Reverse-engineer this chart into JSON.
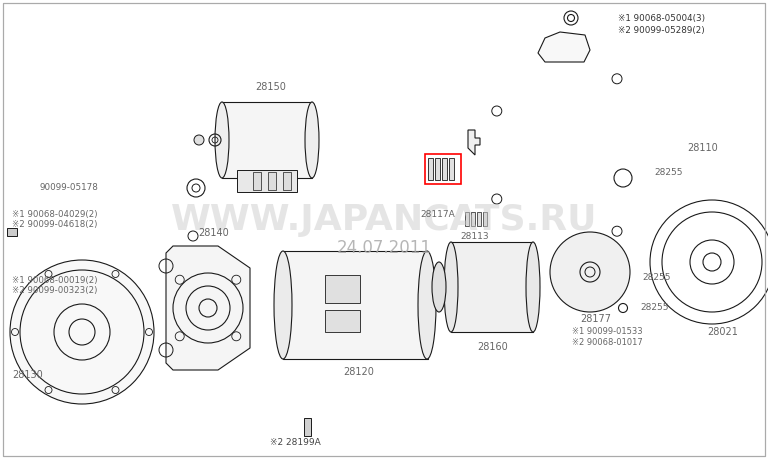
{
  "background_color": "#ffffff",
  "line_color": "#1a1a1a",
  "label_color": "#555555",
  "watermark_text": "WWW.JAPANCATS.RU",
  "watermark_color": "#cccccc",
  "date_text": "24.07.2011",
  "date_color": "#aaaaaa",
  "figsize": [
    7.68,
    4.59
  ],
  "dpi": 100,
  "border_color": "#aaaaaa",
  "lw": 0.8,
  "label_size": 6.5,
  "label_color_dark": "#444444",
  "label_color_mid": "#666666"
}
